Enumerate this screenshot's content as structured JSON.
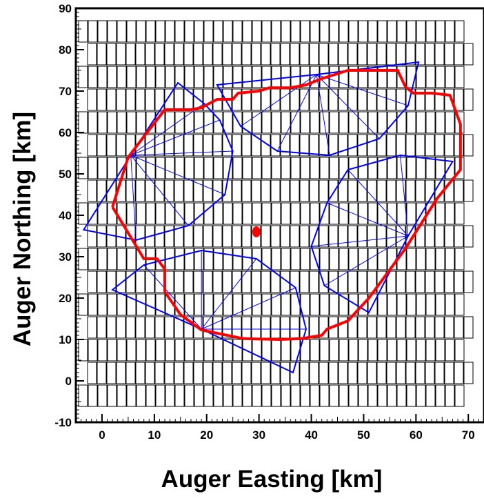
{
  "chart_data": {
    "type": "scatter",
    "title": "",
    "xlabel": "Auger Easting [km]",
    "ylabel": "Auger Northing [km]",
    "xlim": [
      -5,
      73
    ],
    "ylim": [
      -10,
      90
    ],
    "x_ticks": [
      0,
      10,
      20,
      30,
      40,
      50,
      60,
      70
    ],
    "y_ticks": [
      -10,
      0,
      10,
      20,
      30,
      40,
      50,
      60,
      70,
      80,
      90
    ],
    "grid": false,
    "colors": {
      "boundary": "#ff0000",
      "telescope_fov": "#0000ff",
      "marker": "#ff0000",
      "grid_cells": "#000000"
    },
    "series": [
      {
        "type": "line",
        "points": [
          [
            2,
            42
          ],
          [
            8,
            29.5
          ],
          [
            10.5,
            29.5
          ],
          [
            12,
            27
          ],
          [
            12,
            21.5
          ],
          [
            15,
            16
          ],
          [
            19,
            12.3
          ],
          [
            22,
            11.5
          ],
          [
            27,
            10.2
          ],
          [
            34,
            10
          ],
          [
            38,
            10.2
          ],
          [
            42,
            11
          ],
          [
            43,
            12.5
          ],
          [
            47,
            14.5
          ],
          [
            51,
            20
          ],
          [
            54.5,
            26
          ],
          [
            58,
            32
          ],
          [
            61,
            38
          ],
          [
            64,
            44
          ],
          [
            68.5,
            51
          ],
          [
            68.5,
            62
          ],
          [
            66.5,
            69
          ],
          [
            63,
            69.5
          ],
          [
            59.5,
            69.5
          ],
          [
            58,
            71
          ],
          [
            56.5,
            75
          ],
          [
            47,
            75
          ],
          [
            42,
            73
          ],
          [
            39,
            71.5
          ],
          [
            36,
            70.8
          ],
          [
            32,
            70.8
          ],
          [
            30,
            70
          ],
          [
            26,
            69.5
          ],
          [
            25,
            68
          ],
          [
            22,
            68
          ],
          [
            19,
            66
          ],
          [
            17,
            65.5
          ],
          [
            14,
            65.5
          ],
          [
            12,
            65.5
          ],
          [
            8,
            59
          ],
          [
            5,
            54
          ],
          [
            2,
            42
          ]
        ]
      },
      {
        "type": "polygon",
        "vertices": [
          [
            5.5,
            54.5
          ],
          [
            14.5,
            72
          ],
          [
            19.5,
            67
          ],
          [
            22.5,
            63
          ],
          [
            25,
            55.5
          ],
          [
            23.5,
            45
          ],
          [
            16.5,
            37.5
          ],
          [
            6.5,
            34
          ],
          [
            -3.5,
            36.5
          ]
        ],
        "spokes": [
          [
            14.5,
            72
          ],
          [
            19.5,
            67
          ],
          [
            22.5,
            63
          ],
          [
            25,
            55.5
          ],
          [
            23.5,
            45
          ],
          [
            16.5,
            37.5
          ],
          [
            6.5,
            34
          ]
        ],
        "hub": [
          5.5,
          54.5
        ]
      },
      {
        "type": "polygon",
        "vertices": [
          [
            41,
            74
          ],
          [
            60.5,
            77
          ],
          [
            58.5,
            66.5
          ],
          [
            53,
            58.5
          ],
          [
            43.5,
            54.5
          ],
          [
            33.5,
            55.5
          ],
          [
            26.5,
            61.5
          ],
          [
            22,
            71.5
          ]
        ],
        "spokes": [
          [
            58.5,
            66.5
          ],
          [
            53,
            58.5
          ],
          [
            43.5,
            54.5
          ],
          [
            33.5,
            55.5
          ],
          [
            26.5,
            61.5
          ]
        ],
        "hub": [
          41,
          74
        ]
      },
      {
        "type": "polygon",
        "vertices": [
          [
            58.5,
            35
          ],
          [
            67,
            53
          ],
          [
            57,
            54.5
          ],
          [
            47,
            51
          ],
          [
            43,
            43
          ],
          [
            40,
            32.5
          ],
          [
            42.5,
            23
          ],
          [
            51,
            16.5
          ]
        ],
        "spokes": [
          [
            67,
            53
          ],
          [
            57,
            54.5
          ],
          [
            47,
            51
          ],
          [
            43,
            43
          ],
          [
            40,
            32.5
          ],
          [
            42.5,
            23
          ],
          [
            51,
            16.5
          ]
        ],
        "hub": [
          58.5,
          35
        ]
      },
      {
        "type": "polygon",
        "vertices": [
          [
            19,
            12.5
          ],
          [
            2,
            22
          ],
          [
            8,
            28
          ],
          [
            19,
            31.5
          ],
          [
            29.5,
            29.5
          ],
          [
            37,
            22.5
          ],
          [
            39,
            12.5
          ],
          [
            36.5,
            2
          ]
        ],
        "spokes": [
          [
            8,
            28
          ],
          [
            19,
            31.5
          ],
          [
            29.5,
            29.5
          ],
          [
            37,
            22.5
          ],
          [
            39,
            12.5
          ]
        ],
        "hub": [
          19,
          12.5
        ]
      },
      {
        "type": "scatter",
        "points": [
          [
            29.5,
            36
          ]
        ]
      }
    ]
  }
}
